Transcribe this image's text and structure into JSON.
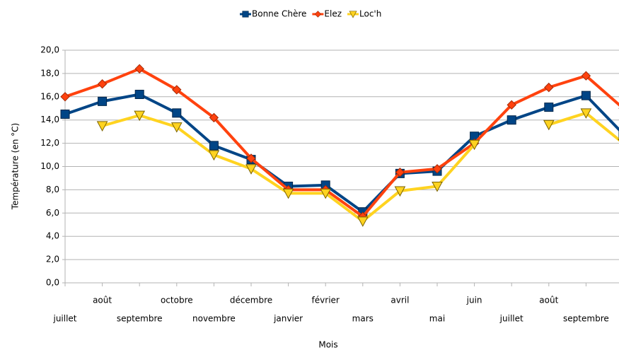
{
  "chart_data": {
    "type": "line",
    "x_label": "Mois",
    "y_label": "Température (en °C)",
    "categories": [
      "juillet",
      "août",
      "septembre",
      "octobre",
      "novembre",
      "décembre",
      "janvier",
      "février",
      "mars",
      "avril",
      "mai",
      "juin",
      "juillet",
      "août",
      "septembre",
      null
    ],
    "series": [
      {
        "name": "Bonne Chère",
        "color": "#004586",
        "marker": "square",
        "values": [
          14.5,
          15.6,
          16.2,
          14.6,
          11.8,
          10.6,
          8.3,
          8.4,
          6.1,
          9.4,
          9.6,
          12.6,
          14.0,
          15.1,
          16.1,
          12.8
        ]
      },
      {
        "name": "Elez",
        "color": "#ff420e",
        "marker": "diamond",
        "values": [
          16.0,
          17.1,
          18.4,
          16.6,
          14.2,
          10.7,
          8.0,
          8.0,
          5.7,
          9.5,
          9.8,
          12.0,
          15.3,
          16.8,
          17.8,
          15.0
        ]
      },
      {
        "name": "Loc'h",
        "color": "#ffd320",
        "marker": "triangle-down",
        "values": [
          null,
          13.5,
          14.4,
          13.4,
          11.0,
          9.8,
          7.7,
          7.7,
          5.3,
          7.9,
          8.3,
          11.9,
          null,
          13.6,
          14.6,
          12.0
        ]
      }
    ],
    "ylim": [
      0,
      20
    ],
    "yticks": [
      {
        "value": 0,
        "label": "0,0"
      },
      {
        "value": 2,
        "label": "2,0"
      },
      {
        "value": 4,
        "label": "4,0"
      },
      {
        "value": 6,
        "label": "6,0"
      },
      {
        "value": 8,
        "label": "8,0"
      },
      {
        "value": 10,
        "label": "10,0"
      },
      {
        "value": 12,
        "label": "12,0"
      },
      {
        "value": 14,
        "label": "14,0"
      },
      {
        "value": 16,
        "label": "16,0"
      },
      {
        "value": 18,
        "label": "18,0"
      },
      {
        "value": 20,
        "label": "20,0"
      }
    ],
    "grid": true,
    "legend": "top"
  }
}
